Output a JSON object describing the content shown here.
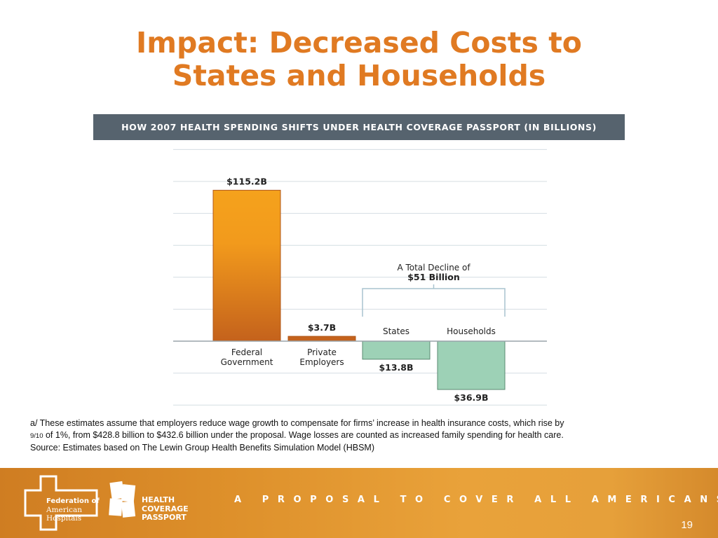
{
  "slide": {
    "title_line1": "Impact: Decreased Costs to",
    "title_line2": "States and Households",
    "page_number": "19"
  },
  "chart_data": {
    "type": "bar",
    "title": "HOW 2007 HEALTH SPENDING SHIFTS UNDER HEALTH COVERAGE PASSPORT (IN BILLIONS)",
    "categories": [
      {
        "line1": "Federal",
        "line2": "Government"
      },
      {
        "line1": "Private",
        "line2": "Employers"
      },
      {
        "line1": "States",
        "line2": ""
      },
      {
        "line1": "Households",
        "line2": ""
      }
    ],
    "values": [
      115.2,
      3.7,
      -13.8,
      -36.9
    ],
    "value_labels": [
      "$115.2B",
      "$3.7B",
      "$13.8B",
      "$36.9B"
    ],
    "ylim": [
      -40,
      130
    ],
    "grid": true,
    "colors": {
      "positive_top": "#f5a21c",
      "positive_bottom": "#c4621c",
      "negative_fill": "#9dd1b6",
      "negative_stroke": "#5a8a72"
    },
    "annotation": {
      "line1": "A Total Decline of",
      "line2": "$51 Billion"
    }
  },
  "footnote": {
    "line1": "a/ These estimates assume that employers reduce wage growth to compensate for firms’ increase in health insurance costs, which rise by",
    "line2_small": "9/10",
    "line2": " of 1%, from $428.8 billion to $432.6 billion under the proposal. Wage losses are counted as increased family spending for health care.",
    "line3": "Source: Estimates based on The Lewin Group Health Benefits Simulation Model (HBSM)"
  },
  "footer": {
    "fah_line1": "Federation of",
    "fah_line2": "American",
    "fah_line3": "Hospitals",
    "hcp_line1": "HEALTH",
    "hcp_line2": "COVERAGE",
    "hcp_line3": "PASSPORT",
    "tagline": "A PROPOSAL TO COVER ALL AMERICANS"
  }
}
